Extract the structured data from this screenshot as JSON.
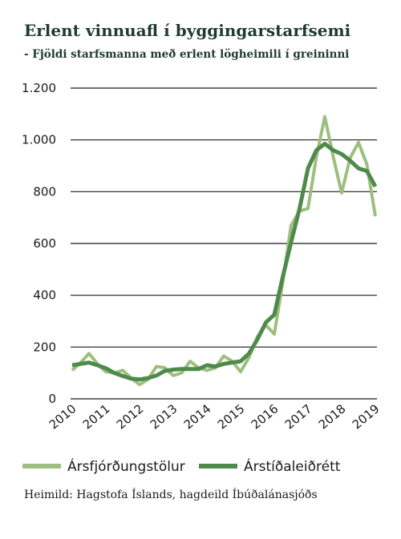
{
  "header": {
    "title": "Erlent vinnuafl í byggingarstarfsemi",
    "subtitle": "- Fjöldi starfsmanna með erlent lögheimili í greininni"
  },
  "source": "Heimild: Hagstofa Íslands, hagdeild Íbúðalánasjóðs",
  "chart_data": {
    "type": "line",
    "title": "Erlent vinnuafl í byggingarstarfsemi",
    "subtitle": "- Fjöldi starfsmanna með erlent lögheimili í greininni",
    "x_tick_labels": [
      "2010",
      "2011",
      "2012",
      "2013",
      "2014",
      "2015",
      "2016",
      "2017",
      "2018",
      "2019"
    ],
    "y_ticks": [
      0,
      200,
      400,
      600,
      800,
      1000,
      1200
    ],
    "y_tick_labels": [
      "0",
      "200",
      "400",
      "600",
      "800",
      "1.000",
      "1.200"
    ],
    "ylim": [
      0,
      1200
    ],
    "grid": "horizontal",
    "legend_position": "bottom",
    "series": [
      {
        "name": "Ársfjórðungstölur",
        "color": "#9dbf7d",
        "values": [
          110,
          140,
          175,
          135,
          105,
          100,
          110,
          80,
          55,
          75,
          125,
          120,
          90,
          100,
          145,
          120,
          110,
          120,
          165,
          145,
          105,
          160,
          240,
          285,
          250,
          450,
          670,
          725,
          735,
          935,
          1090,
          935,
          795,
          930,
          990,
          905,
          705
        ]
      },
      {
        "name": "Árstíðaleiðrétt",
        "color": "#4f8a4c",
        "values": [
          130,
          135,
          140,
          130,
          118,
          100,
          88,
          78,
          75,
          80,
          90,
          108,
          113,
          115,
          115,
          115,
          130,
          125,
          135,
          140,
          145,
          175,
          230,
          295,
          325,
          470,
          605,
          735,
          890,
          960,
          985,
          960,
          945,
          920,
          890,
          880,
          820
        ]
      }
    ]
  }
}
